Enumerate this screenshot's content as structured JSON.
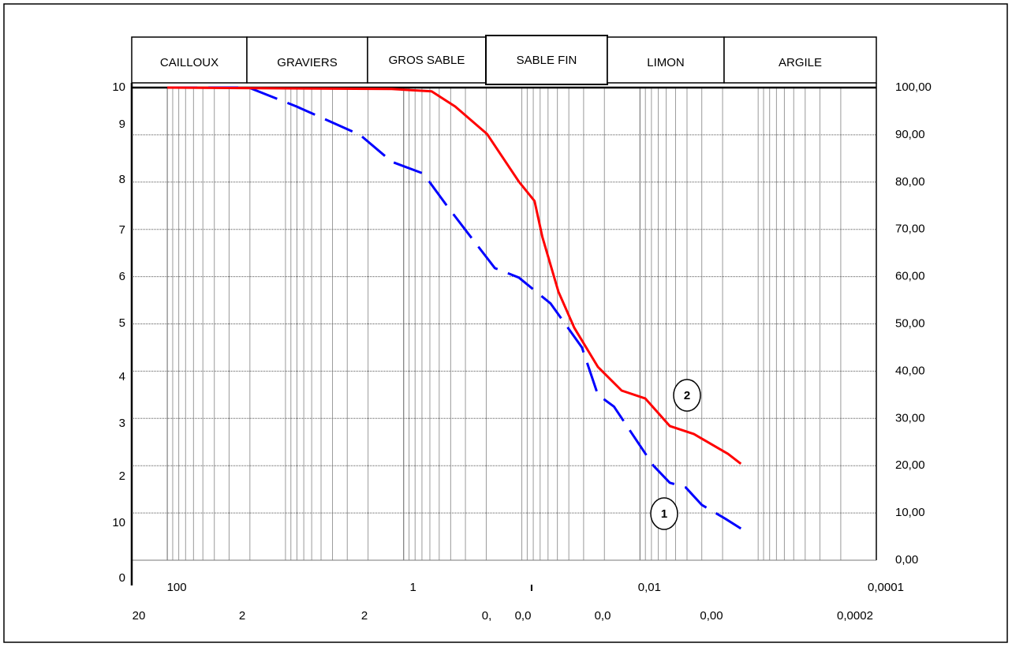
{
  "chart_data": {
    "type": "line",
    "zones": [
      "CAILLOUX",
      "GRAVIERS",
      "GROS SABLE",
      "SABLE FIN",
      "LIMON",
      "ARGILE"
    ],
    "xlog": true,
    "xlim": [
      200,
      0.0001
    ],
    "xticks": [
      100,
      1,
      {
        "value": 0.01,
        "label": "0,01"
      },
      {
        "value": 0.0001,
        "label": "0,0001"
      }
    ],
    "extra_labels": [
      "ı"
    ],
    "x_labels_row2": [
      "20",
      "2",
      "2",
      "0,",
      "0,0",
      "0,0",
      "0,00",
      "0,0002"
    ],
    "ylim": [
      0,
      100
    ],
    "yticks": [
      {
        "value": 100,
        "label": "100,00"
      },
      {
        "value": 90,
        "label": "90,00"
      },
      {
        "value": 80,
        "label": "80,00"
      },
      {
        "value": 70,
        "label": "70,00"
      },
      {
        "value": 60,
        "label": "60,00"
      },
      {
        "value": 50,
        "label": "50,00"
      },
      {
        "value": 40,
        "label": "40,00"
      },
      {
        "value": 30,
        "label": "30,00"
      },
      {
        "value": 20,
        "label": "20,00"
      },
      {
        "value": 10,
        "label": "10,00"
      },
      {
        "value": 0,
        "label": "0,00"
      }
    ],
    "left_labels": [
      "10",
      "9",
      "8",
      "7",
      "6",
      "5",
      "4",
      "3",
      "2",
      "10",
      "0"
    ],
    "grid": true,
    "series": [
      {
        "name": "1",
        "color": "#0000ff",
        "dashed": true,
        "x": [
          100,
          20.4,
          8.05,
          2.34,
          1.26,
          0.68,
          0.43,
          0.27,
          0.169,
          0.106,
          0.057,
          0.031,
          0.0227,
          0.0166,
          0.0122,
          0.0077,
          0.0056,
          0.0041,
          0.003,
          0.0019,
          0.0014
        ],
        "values": [
          100,
          100,
          96,
          90,
          84.3,
          81.8,
          75,
          68.4,
          61.8,
          59.8,
          54.3,
          45,
          35,
          32.5,
          27.5,
          20,
          16.4,
          15.4,
          11.7,
          8.8,
          6.7
        ]
      },
      {
        "name": "2",
        "color": "#ff0000",
        "dashed": false,
        "x": [
          100,
          1.26,
          0.58,
          0.366,
          0.197,
          0.106,
          0.078,
          0.067,
          0.049,
          0.036,
          0.0227,
          0.0143,
          0.009,
          0.0056,
          0.0035,
          0.0018,
          0.0014
        ],
        "values": [
          100,
          99.7,
          99.2,
          96,
          90.2,
          80.1,
          76,
          68.4,
          56.8,
          49.2,
          40.9,
          35.9,
          34.2,
          28.4,
          26.7,
          22.5,
          20.4
        ]
      }
    ]
  }
}
